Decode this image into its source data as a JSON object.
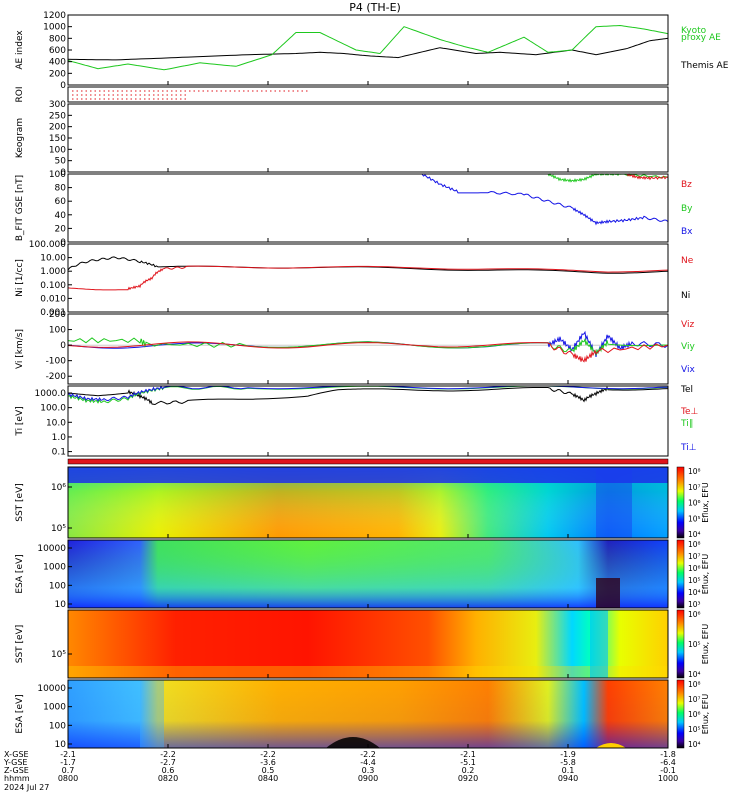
{
  "title": "P4 (TH-E)",
  "colors": {
    "black": "#000000",
    "red": "#e0141c",
    "green": "#1ec81e",
    "blue": "#1414e6"
  },
  "chart_data": [
    {
      "type": "line",
      "panel": "ae",
      "ylabel": "AE index",
      "yticks": [
        "0",
        "200",
        "400",
        "600",
        "800",
        "1000",
        "1200"
      ],
      "ylim": [
        0,
        1200
      ],
      "legend": [
        "Kyoto",
        "proxy AE",
        "Themis AE"
      ],
      "series": [
        {
          "name": "Themis AE",
          "color": "#000000",
          "t": [
            0,
            0.08,
            0.18,
            0.3,
            0.38,
            0.42,
            0.46,
            0.5,
            0.55,
            0.62,
            0.68,
            0.72,
            0.78,
            0.84,
            0.88,
            0.93,
            0.97,
            1.0
          ],
          "values": [
            440,
            430,
            470,
            520,
            540,
            560,
            540,
            500,
            470,
            640,
            540,
            560,
            520,
            600,
            520,
            620,
            760,
            800
          ]
        },
        {
          "name": "Kyoto proxy AE",
          "color": "#1ec81e",
          "t": [
            0,
            0.05,
            0.1,
            0.16,
            0.22,
            0.28,
            0.34,
            0.38,
            0.42,
            0.48,
            0.52,
            0.56,
            0.62,
            0.66,
            0.7,
            0.76,
            0.8,
            0.84,
            0.88,
            0.92,
            0.96,
            1.0
          ],
          "values": [
            420,
            280,
            360,
            260,
            380,
            320,
            520,
            900,
            900,
            600,
            540,
            1000,
            780,
            660,
            560,
            820,
            560,
            600,
            1000,
            1020,
            960,
            880
          ]
        }
      ]
    },
    {
      "type": "scatter",
      "panel": "roi",
      "ylabel": "ROI"
    },
    {
      "type": "heatmap",
      "panel": "keogram",
      "ylabel": "Keogram",
      "yticks": [
        "0",
        "50",
        "100",
        "150",
        "200",
        "250",
        "300"
      ],
      "ylim": [
        0,
        300
      ]
    },
    {
      "type": "line",
      "panel": "bfield",
      "ylabel": "B_FIT GSE [nT]",
      "yticks": [
        "0",
        "20",
        "40",
        "60",
        "80",
        "100"
      ],
      "ylim": [
        0,
        100
      ],
      "legend": [
        "Bz",
        "By",
        "Bx"
      ],
      "series": [
        {
          "name": "Bx",
          "color": "#1414e6",
          "t": [
            0.59,
            0.62,
            0.65,
            0.7,
            0.76,
            0.8,
            0.84,
            0.86,
            0.88,
            0.9,
            0.93,
            0.96,
            1.0
          ],
          "values": [
            100,
            85,
            74,
            73,
            70,
            60,
            50,
            40,
            28,
            30,
            32,
            36,
            30
          ]
        },
        {
          "name": "By",
          "color": "#1ec81e",
          "t": [
            0.8,
            0.82,
            0.84,
            0.86,
            0.88,
            0.9,
            0.92,
            1.0
          ],
          "values": [
            100,
            92,
            90,
            92,
            100,
            100,
            100,
            95
          ]
        },
        {
          "name": "Bz",
          "color": "#e0141c",
          "t": [
            0.93,
            0.95,
            0.97,
            1.0
          ],
          "values": [
            100,
            95,
            94,
            95
          ]
        }
      ]
    },
    {
      "type": "line",
      "panel": "density",
      "ylabel": "Ni [1/cc]",
      "yticks": [
        "0.001",
        "0.010",
        "0.100",
        "1.000",
        "10.00",
        "100.000"
      ],
      "ylim": [
        0.001,
        100
      ],
      "scale": "log",
      "legend": [
        "Ne",
        "Ni"
      ],
      "series": [
        {
          "name": "Ni",
          "color": "#000000",
          "t": [
            0,
            0.04,
            0.08,
            0.12,
            0.15,
            0.2,
            0.4,
            0.6,
            0.8,
            0.9,
            1.0
          ],
          "values": [
            1.2,
            6,
            10,
            5,
            2,
            2,
            2,
            1.5,
            1,
            0.8,
            1
          ]
        },
        {
          "name": "Ne",
          "color": "#e0141c",
          "t": [
            0,
            0.05,
            0.1,
            0.12,
            0.14,
            0.16,
            0.2,
            0.4,
            0.6,
            0.8,
            0.9,
            1.0
          ],
          "values": [
            0.06,
            0.05,
            0.05,
            0.08,
            0.3,
            1.5,
            2,
            2,
            1.8,
            1.2,
            1,
            1.2
          ]
        }
      ]
    },
    {
      "type": "line",
      "panel": "velocity",
      "ylabel": "Vi [km/s]",
      "yticks": [
        "-200",
        "-100",
        "0",
        "100",
        "200"
      ],
      "ylim": [
        -250,
        200
      ],
      "legend": [
        "Viz",
        "Viy",
        "Vix"
      ],
      "series": [
        {
          "name": "Vix",
          "color": "#1414e6",
          "t": [
            0,
            0.1,
            0.3,
            0.5,
            0.7,
            0.8,
            0.82,
            0.84,
            0.86,
            0.88,
            0.9,
            0.92,
            0.94,
            1.0
          ],
          "values": [
            0,
            -5,
            0,
            5,
            -5,
            0,
            40,
            -30,
            80,
            -60,
            60,
            -20,
            10,
            0
          ]
        },
        {
          "name": "Viy",
          "color": "#1ec81e",
          "t": [
            0,
            0.12,
            0.13,
            0.3,
            0.5,
            0.7,
            0.8,
            0.84,
            0.86,
            0.88,
            0.9,
            1.0
          ],
          "values": [
            30,
            30,
            5,
            0,
            5,
            -5,
            0,
            -40,
            30,
            -50,
            20,
            0
          ]
        },
        {
          "name": "Viz",
          "color": "#e0141c",
          "t": [
            0,
            0.2,
            0.4,
            0.6,
            0.8,
            0.84,
            0.86,
            0.88,
            1.0
          ],
          "values": [
            0,
            5,
            -5,
            5,
            0,
            -60,
            -100,
            -40,
            0
          ]
        }
      ]
    },
    {
      "type": "line",
      "panel": "temperature",
      "ylabel": "Ti [eV]",
      "yticks": [
        "0.1",
        "1.0",
        "10.0",
        "100.0",
        "1000.0"
      ],
      "ylim": [
        0.05,
        3000
      ],
      "scale": "log",
      "legend": [
        "Tel",
        "Te⊥",
        "Ti∥",
        "Ti⊥"
      ],
      "series": [
        {
          "name": "Tel",
          "color": "#000000",
          "t": [
            0,
            0.05,
            0.1,
            0.12,
            0.14,
            0.2,
            0.3,
            0.4,
            0.45,
            0.5,
            0.6,
            0.7,
            0.8,
            0.84,
            0.86,
            0.88,
            0.9,
            1.0
          ],
          "values": [
            1000,
            800,
            1200,
            600,
            200,
            250,
            400,
            700,
            1500,
            1500,
            1700,
            1800,
            1900,
            800,
            300,
            900,
            2000,
            2000
          ]
        },
        {
          "name": "Ti∥",
          "color": "#1ec81e",
          "t": [
            0,
            0.03,
            0.06,
            0.1,
            0.13,
            0.16,
            0.3,
            0.5,
            0.7,
            0.9,
            1.0
          ],
          "values": [
            600,
            300,
            250,
            400,
            1200,
            2200,
            2300,
            2300,
            2400,
            2400,
            2400
          ]
        },
        {
          "name": "Ti⊥",
          "color": "#1414e6",
          "t": [
            0,
            0.03,
            0.06,
            0.1,
            0.13,
            0.16,
            0.3,
            0.5,
            0.7,
            0.9,
            1.0
          ],
          "values": [
            800,
            400,
            350,
            500,
            1400,
            2400,
            2500,
            2500,
            2500,
            2500,
            2500
          ]
        }
      ]
    },
    {
      "type": "heatmap",
      "panel": "sst_e",
      "ylabel": "SST [eV]",
      "yticks": [
        "10⁵",
        "10⁶"
      ],
      "colorbar": {
        "label": "Eflux, EFU",
        "ticks": [
          "10⁴",
          "10⁵",
          "10⁶",
          "10⁷",
          "10⁸"
        ]
      }
    },
    {
      "type": "heatmap",
      "panel": "esa_e",
      "ylabel": "ESA [eV]",
      "yticks": [
        "10",
        "100",
        "1000",
        "10000"
      ],
      "colorbar": {
        "label": "Eflux, EFU",
        "ticks": [
          "10³",
          "10⁴",
          "10⁵",
          "10⁶",
          "10⁷",
          "10⁸"
        ]
      }
    },
    {
      "type": "heatmap",
      "panel": "sst_i",
      "ylabel": "SST [eV]",
      "yticks": [
        "10⁵"
      ],
      "colorbar": {
        "label": "Eflux, EFU",
        "ticks": [
          "10⁴",
          "10⁵",
          "10⁶"
        ]
      }
    },
    {
      "type": "heatmap",
      "panel": "esa_i",
      "ylabel": "ESA [eV]",
      "yticks": [
        "10",
        "100",
        "1000",
        "10000"
      ],
      "colorbar": {
        "label": "Eflux, EFU",
        "ticks": [
          "10⁴",
          "10⁵",
          "10⁶",
          "10⁷",
          "10⁸"
        ]
      }
    }
  ],
  "xaxis": {
    "rows": [
      "X-GSE",
      "Y-GSE",
      "Z-GSE",
      "hhmm",
      "2024 Jul 27"
    ],
    "ticks": [
      {
        "x": "-2.1",
        "y": "-1.7",
        "z": "0.7",
        "t": "0800"
      },
      {
        "x": "-2.2",
        "y": "-2.7",
        "z": "0.6",
        "t": "0820"
      },
      {
        "x": "-2.2",
        "y": "-3.6",
        "z": "0.5",
        "t": "0840"
      },
      {
        "x": "-2.2",
        "y": "-4.4",
        "z": "0.3",
        "t": "0900"
      },
      {
        "x": "-2.1",
        "y": "-5.1",
        "z": "0.2",
        "t": "0920"
      },
      {
        "x": "-1.9",
        "y": "-5.8",
        "z": "0.1",
        "t": "0940"
      },
      {
        "x": "-1.8",
        "y": "-6.4",
        "z": "-0.1",
        "t": "1000"
      }
    ]
  }
}
